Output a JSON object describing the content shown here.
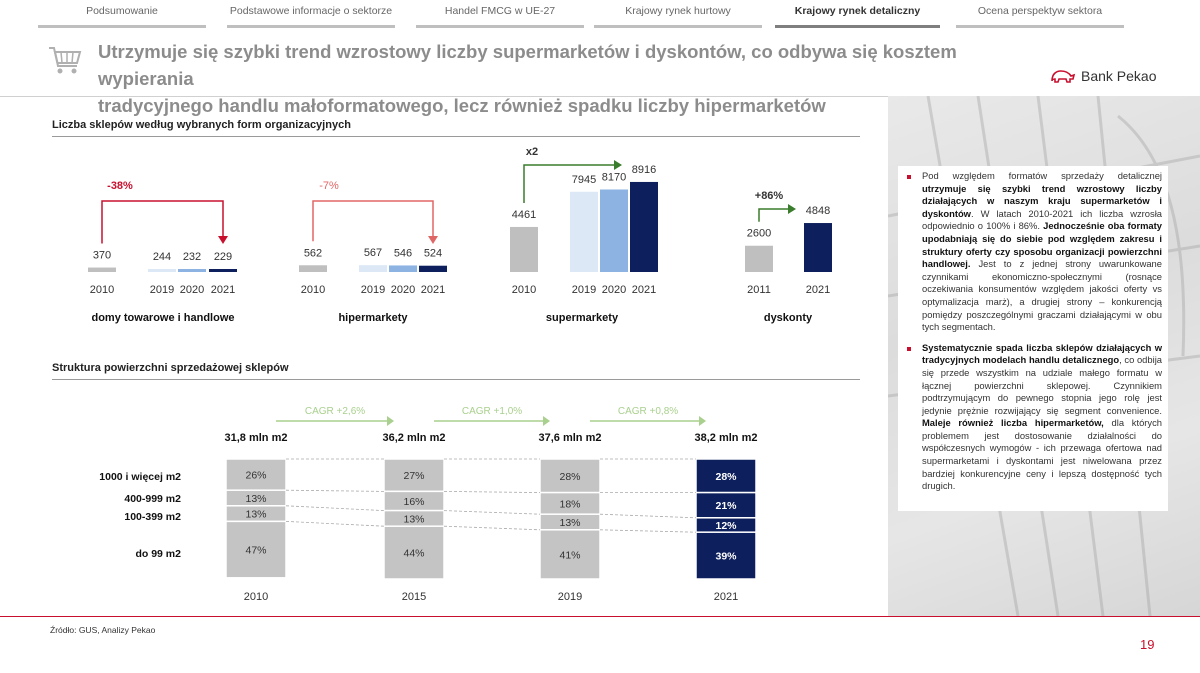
{
  "nav": {
    "tabs": [
      {
        "label": "Podsumowanie",
        "active": false
      },
      {
        "label": "Podstawowe informacje o sektorze",
        "active": false
      },
      {
        "label": "Handel FMCG w UE-27",
        "active": false
      },
      {
        "label": "Krajowy rynek hurtowy",
        "active": false
      },
      {
        "label": "Krajowy rynek detaliczny",
        "active": true
      },
      {
        "label": "Ocena perspektyw sektora",
        "active": false
      }
    ]
  },
  "header": {
    "icon": "shopping-cart-icon",
    "title_line1": "Utrzymuje się szybki trend wzrostowy liczby supermarketów i dyskontów, co odbywa się kosztem wypierania",
    "title_line2": "tradycyjnego handlu małoformatowego, lecz również spadku liczby hipermarketów",
    "logo": "Bank Pekao"
  },
  "colors": {
    "accent": "#c8102e",
    "navy": "#0d1f5c",
    "mid_blue": "#8db3e2",
    "light_blue": "#dce8f6",
    "grey": "#bfbfbf",
    "green": "#3a7d2c",
    "light_green": "#a9d08e",
    "pink": "#f4a5a5"
  },
  "chart_data": [
    {
      "type": "bar",
      "title": "Liczba sklepów według wybranych form organizacyjnych",
      "groups": [
        {
          "name": "domy towarowe i handlowe",
          "categories": [
            "2010",
            "2019",
            "2020",
            "2021"
          ],
          "values": [
            370,
            244,
            232,
            229
          ],
          "change": "-38%"
        },
        {
          "name": "hipermarkety",
          "categories": [
            "2010",
            "2019",
            "2020",
            "2021"
          ],
          "values": [
            562,
            567,
            546,
            524
          ],
          "change": "-7%"
        },
        {
          "name": "supermarkety",
          "categories": [
            "2010",
            "2019",
            "2020",
            "2021"
          ],
          "values": [
            4461,
            7945,
            8170,
            8916
          ],
          "change": "x2"
        },
        {
          "name": "dyskonty",
          "categories": [
            "2011",
            "2021"
          ],
          "values": [
            2600,
            4848
          ],
          "change": "+86%"
        }
      ]
    },
    {
      "type": "bar",
      "subtype": "stacked-100",
      "title": "Struktura powierzchni sprzedażowej sklepów",
      "categories": [
        "2010",
        "2015",
        "2019",
        "2021"
      ],
      "totals": [
        "31,8 mln m2",
        "36,2 mln m2",
        "37,6 mln m2",
        "38,2 mln m2"
      ],
      "cagr": [
        "CAGR +2,6%",
        "CAGR +1,0%",
        "CAGR +0,8%"
      ],
      "series": [
        {
          "name": "1000 i więcej m2",
          "values": [
            26,
            27,
            28,
            28
          ],
          "labels": [
            "26%",
            "27%",
            "28%",
            "28%"
          ]
        },
        {
          "name": "400-999 m2",
          "values": [
            13,
            16,
            18,
            21
          ],
          "labels": [
            "13%",
            "16%",
            "18%",
            "21%"
          ]
        },
        {
          "name": "100-399 m2",
          "values": [
            13,
            13,
            13,
            12
          ],
          "labels": [
            "13%",
            "13%",
            "13%",
            "12%"
          ]
        },
        {
          "name": "do 99 m2",
          "values": [
            47,
            44,
            41,
            39
          ],
          "labels": [
            "47%",
            "44%",
            "41%",
            "39%"
          ]
        }
      ]
    }
  ],
  "commentary": {
    "p1_a": "Pod względem formatów sprzedaży detalicznej ",
    "p1_b": "utrzymuje się szybki trend wzrostowy liczby działających w naszym kraju supermarketów i dyskontów",
    "p1_c": ". W latach 2010-2021 ich liczba wzrosła odpowiednio o 100% i 86%. ",
    "p1_d": "Jednocześnie oba formaty upodabniają się do siebie pod względem zakresu i struktury oferty czy sposobu organizacji powierzchni handlowej.",
    "p1_e": " Jest to z jednej strony uwarunkowane czynnikami ekonomiczno-społecznymi (rosnące oczekiwania konsumentów względem jakości oferty vs optymalizacja marż), a drugiej strony – konkurencją pomiędzy poszczególnymi graczami działającymi w obu tych segmentach.",
    "p2_a": "Systematycznie spada liczba sklepów działających w tradycyjnych modelach handlu detalicznego",
    "p2_b": ", co odbija się przede wszystkim na udziale małego formatu w łącznej powierzchni sklepowej. Czynnikiem podtrzymującym do pewnego stopnia jego rolę jest jedynie prężnie rozwijający się segment convenience. ",
    "p2_c": "Maleje również liczba hipermarketów,",
    "p2_d": " dla których problemem jest dostosowanie działalności do współczesnych wymogów - ich przewaga ofertowa nad supermarketami i dyskontami jest niwelowana przez bardziej konkurencyjne ceny i lepszą dostępność tych drugich."
  },
  "footer": {
    "source": "Źródło: GUS, Analizy Pekao",
    "page": "19"
  }
}
